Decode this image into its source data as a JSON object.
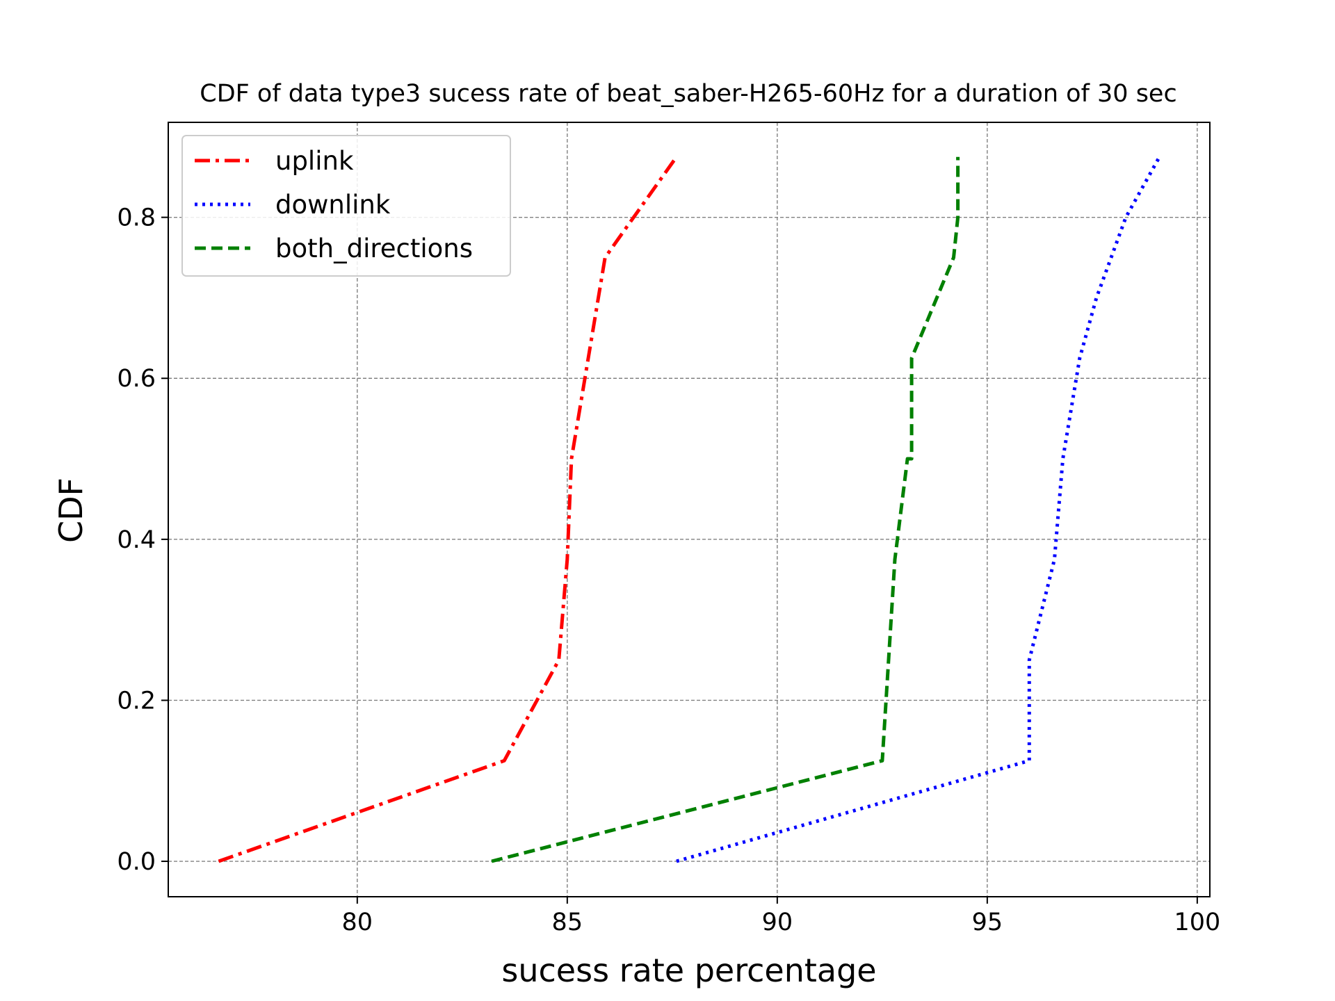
{
  "chart_data": {
    "type": "line",
    "title": "CDF of data type3 sucess rate of beat_saber-H265-60Hz for a duration of 30 sec",
    "xlabel": "sucess rate percentage",
    "ylabel": "CDF",
    "xlim": [
      75.5,
      100.3
    ],
    "ylim": [
      -0.044,
      0.918
    ],
    "xticks": [
      80,
      85,
      90,
      95,
      100
    ],
    "xtick_labels": [
      "80",
      "85",
      "90",
      "95",
      "100"
    ],
    "yticks": [
      0.0,
      0.2,
      0.4,
      0.6,
      0.8
    ],
    "ytick_labels": [
      "0.0",
      "0.2",
      "0.4",
      "0.6",
      "0.8"
    ],
    "grid": true,
    "legend_position": "top-left",
    "series": [
      {
        "name": "uplink",
        "color": "#ff0000",
        "style": "dashdot",
        "x": [
          76.7,
          83.5,
          84.8,
          85.0,
          85.1,
          85.9,
          87.6
        ],
        "y": [
          0.0,
          0.125,
          0.25,
          0.375,
          0.5,
          0.75,
          0.875
        ]
      },
      {
        "name": "downlink",
        "color": "#0000ff",
        "style": "dotted",
        "x": [
          87.6,
          96.0,
          96.0,
          96.6,
          96.8,
          97.2,
          97.6,
          98.3,
          99.1
        ],
        "y": [
          0.0,
          0.125,
          0.25,
          0.375,
          0.5,
          0.625,
          0.7,
          0.8,
          0.875
        ]
      },
      {
        "name": "both_directions",
        "color": "#008000",
        "style": "dashed",
        "x": [
          83.2,
          92.5,
          92.8,
          93.1,
          93.2,
          93.2,
          94.2,
          94.3,
          94.3
        ],
        "y": [
          0.0,
          0.125,
          0.375,
          0.5,
          0.5,
          0.625,
          0.75,
          0.8,
          0.875
        ]
      }
    ]
  }
}
